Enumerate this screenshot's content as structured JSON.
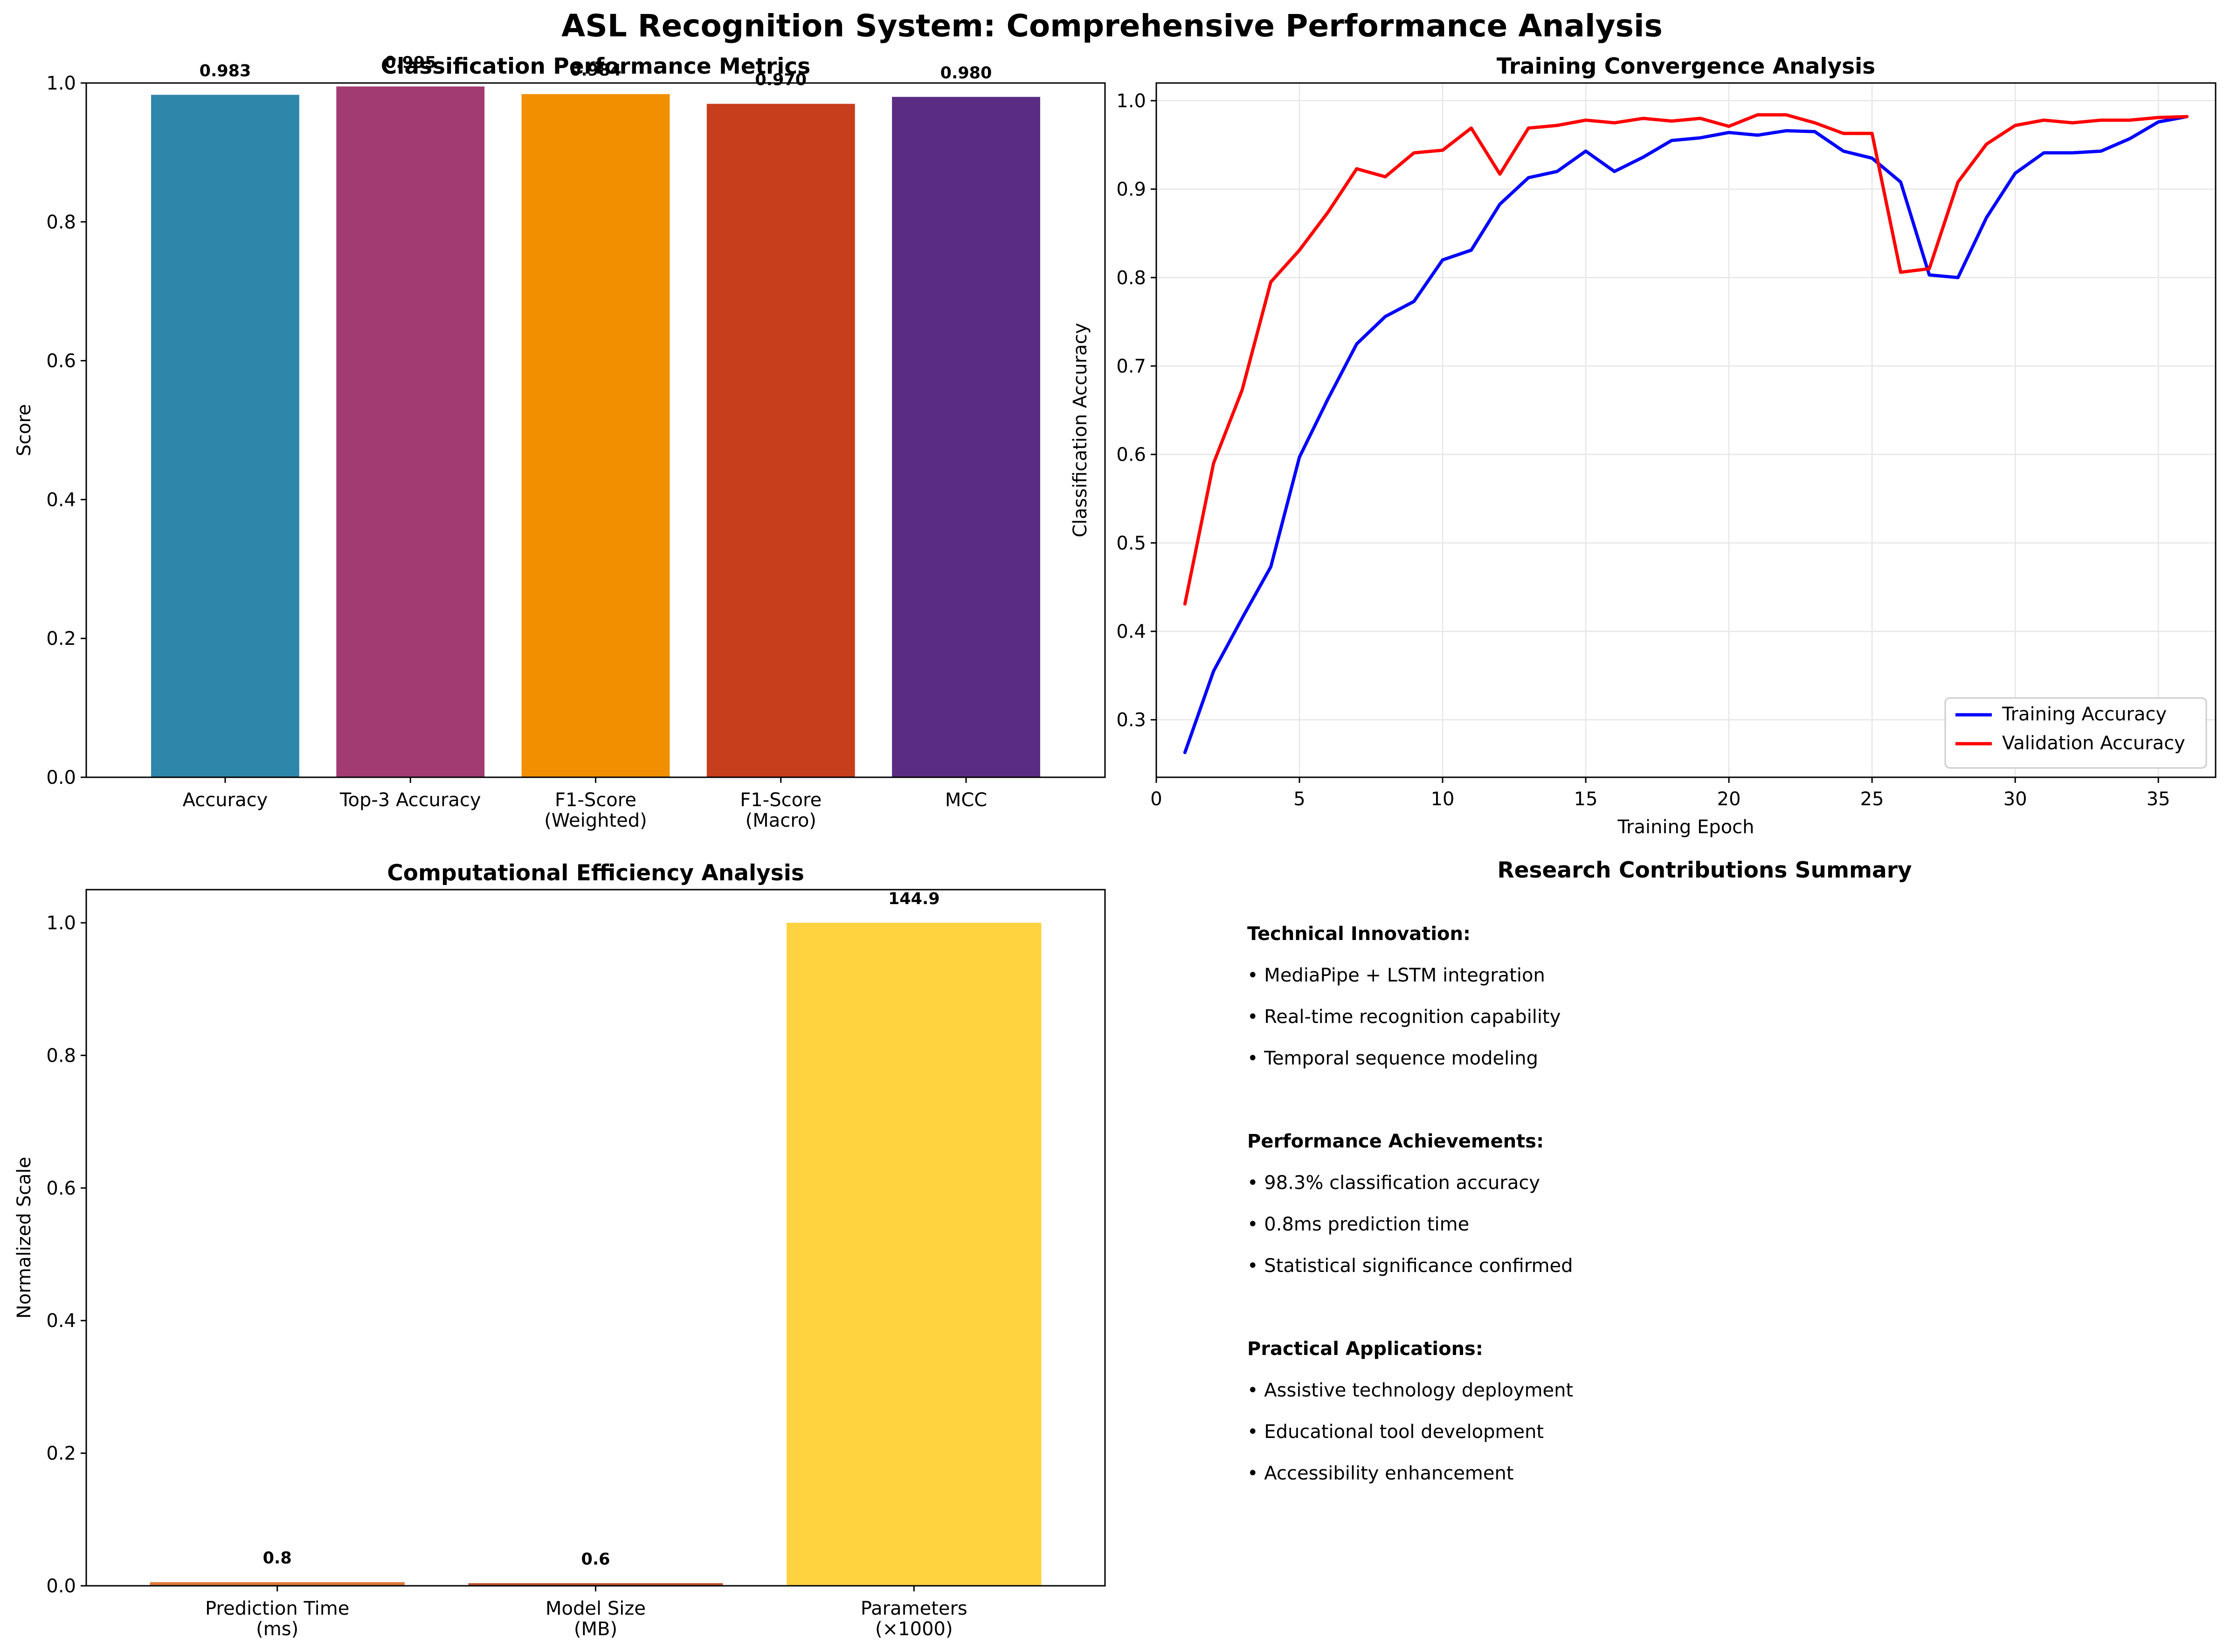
{
  "figure": {
    "title": "ASL Recognition System: Comprehensive Performance Analysis"
  },
  "chart_data": [
    {
      "type": "bar",
      "title": "Classification Performance Metrics",
      "xlabel": "",
      "ylabel": "Score",
      "ylim": [
        0,
        1.0
      ],
      "yticks": [
        "0.0",
        "0.2",
        "0.4",
        "0.6",
        "0.8",
        "1.0"
      ],
      "categories": [
        "Accuracy",
        "Top-3 Accuracy",
        "F1-Score\n(Weighted)",
        "F1-Score\n(Macro)",
        "MCC"
      ],
      "values": [
        0.983,
        0.995,
        0.984,
        0.97,
        0.98
      ],
      "value_labels": [
        "0.983",
        "0.995",
        "0.984",
        "0.970",
        "0.980"
      ],
      "colors": [
        "#2E86AB",
        "#A23B72",
        "#F18F01",
        "#C73E1D",
        "#5B2C83"
      ],
      "grid": false
    },
    {
      "type": "line",
      "title": "Training Convergence Analysis",
      "xlabel": "Training Epoch",
      "ylabel": "Classification Accuracy",
      "xlim": [
        0,
        37
      ],
      "ylim": [
        0.235,
        1.02
      ],
      "xticks": [
        "0",
        "5",
        "10",
        "15",
        "20",
        "25",
        "30",
        "35"
      ],
      "yticks": [
        "0.3",
        "0.4",
        "0.5",
        "0.6",
        "0.7",
        "0.8",
        "0.9",
        "1.0"
      ],
      "grid": true,
      "legend_position": "lower-right",
      "x": [
        1,
        2,
        3,
        4,
        5,
        6,
        7,
        8,
        9,
        10,
        11,
        12,
        13,
        14,
        15,
        16,
        17,
        18,
        19,
        20,
        21,
        22,
        23,
        24,
        25,
        26,
        27,
        28,
        29,
        30,
        31,
        32,
        33,
        34,
        35,
        36
      ],
      "series": [
        {
          "name": "Training Accuracy",
          "color": "#0000FF",
          "values": [
            0.263,
            0.355,
            0.415,
            0.473,
            0.597,
            0.663,
            0.725,
            0.756,
            0.773,
            0.82,
            0.831,
            0.883,
            0.913,
            0.92,
            0.943,
            0.92,
            0.936,
            0.955,
            0.958,
            0.964,
            0.961,
            0.966,
            0.965,
            0.943,
            0.935,
            0.908,
            0.803,
            0.8,
            0.868,
            0.918,
            0.941,
            0.941,
            0.943,
            0.957,
            0.976,
            0.982
          ]
        },
        {
          "name": "Validation Accuracy",
          "color": "#FF0000",
          "values": [
            0.431,
            0.59,
            0.673,
            0.795,
            0.831,
            0.874,
            0.923,
            0.914,
            0.941,
            0.944,
            0.969,
            0.917,
            0.969,
            0.972,
            0.978,
            0.975,
            0.98,
            0.977,
            0.98,
            0.971,
            0.984,
            0.984,
            0.975,
            0.963,
            0.963,
            0.806,
            0.81,
            0.908,
            0.951,
            0.972,
            0.978,
            0.975,
            0.978,
            0.978,
            0.981,
            0.982
          ]
        }
      ]
    },
    {
      "type": "bar",
      "title": "Computational Efficiency Analysis",
      "xlabel": "",
      "ylabel": "Normalized Scale",
      "ylim": [
        0,
        1.05
      ],
      "yticks": [
        "0.0",
        "0.2",
        "0.4",
        "0.6",
        "0.8",
        "1.0"
      ],
      "categories": [
        "Prediction Time\n(ms)",
        "Model Size\n(MB)",
        "Parameters\n(×1000)"
      ],
      "values": [
        0.0055,
        0.004,
        1.0
      ],
      "value_labels": [
        "0.8",
        "0.6",
        "144.9"
      ],
      "colors": [
        "#E07B39",
        "#C0552B",
        "#FFD23F"
      ],
      "grid": false
    }
  ],
  "summary": {
    "title": "Research Contributions Summary",
    "sections": [
      {
        "heading": "Technical Innovation:",
        "items": [
          "• MediaPipe + LSTM integration",
          "• Real-time recognition capability",
          "• Temporal sequence modeling"
        ]
      },
      {
        "heading": "Performance Achievements:",
        "items": [
          "• 98.3% classification accuracy",
          "• 0.8ms prediction time",
          "• Statistical significance confirmed"
        ]
      },
      {
        "heading": "Practical Applications:",
        "items": [
          "• Assistive technology deployment",
          "• Educational tool development",
          "• Accessibility enhancement"
        ]
      }
    ]
  }
}
